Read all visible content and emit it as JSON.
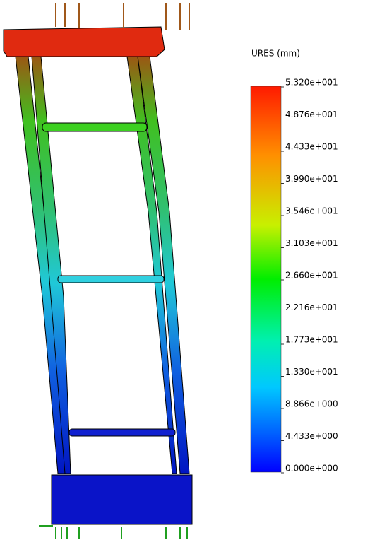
{
  "legend": {
    "title": "URES (mm)",
    "ticks": [
      "5.320e+001",
      "4.876e+001",
      "4.433e+001",
      "3.990e+001",
      "3.546e+001",
      "3.103e+001",
      "2.660e+001",
      "2.216e+001",
      "1.773e+001",
      "1.330e+001",
      "8.866e+000",
      "4.433e+000",
      "0.000e+000"
    ]
  }
}
